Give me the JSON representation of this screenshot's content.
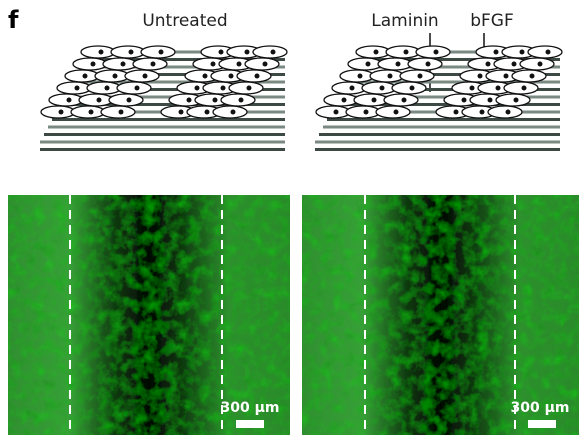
{
  "panel_label": "f",
  "schematics": [
    {
      "label": "Untreated"
    },
    {
      "labels": [
        "Laminin",
        "bFGF"
      ]
    }
  ],
  "images": [
    {
      "scale_bar": "300 µm"
    },
    {
      "scale_bar": "300 µm"
    }
  ]
}
